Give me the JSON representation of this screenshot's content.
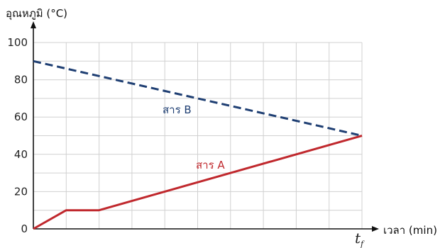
{
  "chart_data": {
    "type": "line",
    "y_axis_title": "อุณหภูมิ (°C)",
    "x_axis_title": "เวลา (min)",
    "x_end_label": "t",
    "x_end_label_subscript": "f",
    "y_ticks": [
      "0",
      "20",
      "40",
      "60",
      "80",
      "100"
    ],
    "ylim": [
      0,
      100
    ],
    "xlim": [
      0,
      10
    ],
    "grid": true,
    "series": [
      {
        "name": "สาร A",
        "color": "#c0282d",
        "style": "solid",
        "x": [
          0,
          1,
          2,
          10
        ],
        "y": [
          0,
          10,
          10,
          50
        ]
      },
      {
        "name": "สาร B",
        "color": "#1f3f73",
        "style": "dashed",
        "x": [
          0,
          10
        ],
        "y": [
          90,
          50
        ]
      }
    ]
  }
}
